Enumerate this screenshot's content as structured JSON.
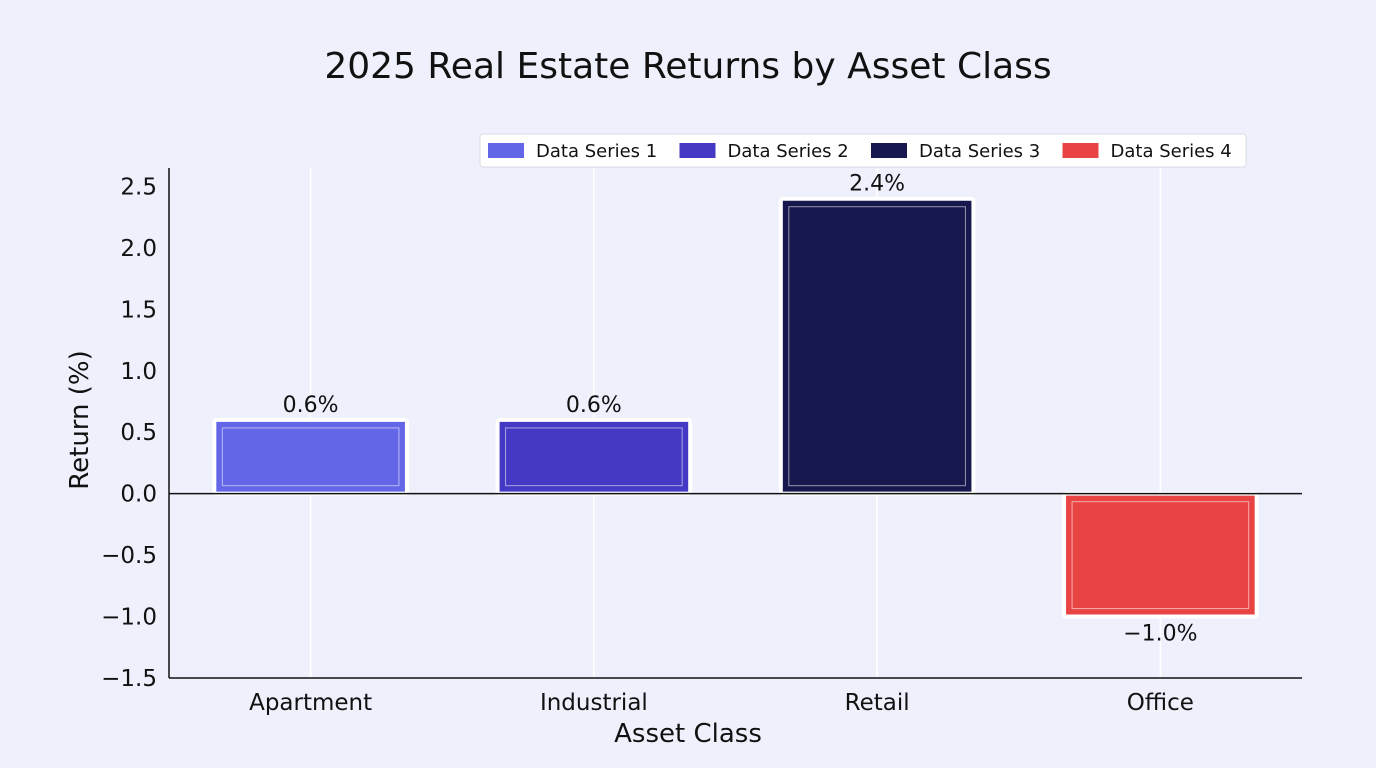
{
  "chart_data": {
    "type": "bar",
    "title": "2025 Real Estate Returns by Asset Class",
    "xlabel": "Asset Class",
    "ylabel": "Return (%)",
    "categories": [
      "Apartment",
      "Industrial",
      "Retail",
      "Office"
    ],
    "series": [
      {
        "name": "Data Series 1",
        "values": [
          0.6,
          null,
          null,
          null
        ],
        "color": "#6366e6"
      },
      {
        "name": "Data Series 2",
        "values": [
          null,
          0.6,
          null,
          null
        ],
        "color": "#4339c4"
      },
      {
        "name": "Data Series 3",
        "values": [
          null,
          null,
          2.4,
          null
        ],
        "color": "#17184d"
      },
      {
        "name": "Data Series 4",
        "values": [
          null,
          null,
          null,
          -1.0
        ],
        "color": "#e84444"
      }
    ],
    "data_labels": [
      "0.6%",
      "0.6%",
      "2.4%",
      "−1.0%"
    ],
    "ylim": [
      -1.5,
      2.65
    ],
    "yticks": [
      "−1.5",
      "−1.0",
      "−0.5",
      "0.0",
      "0.5",
      "1.0",
      "1.5",
      "2.0",
      "2.5"
    ],
    "ytick_values": [
      -1.5,
      -1.0,
      -0.5,
      0.0,
      0.5,
      1.0,
      1.5,
      2.0,
      2.5
    ],
    "grid": "vertical",
    "legend_position": "top-right",
    "background": "#eef1fc"
  }
}
